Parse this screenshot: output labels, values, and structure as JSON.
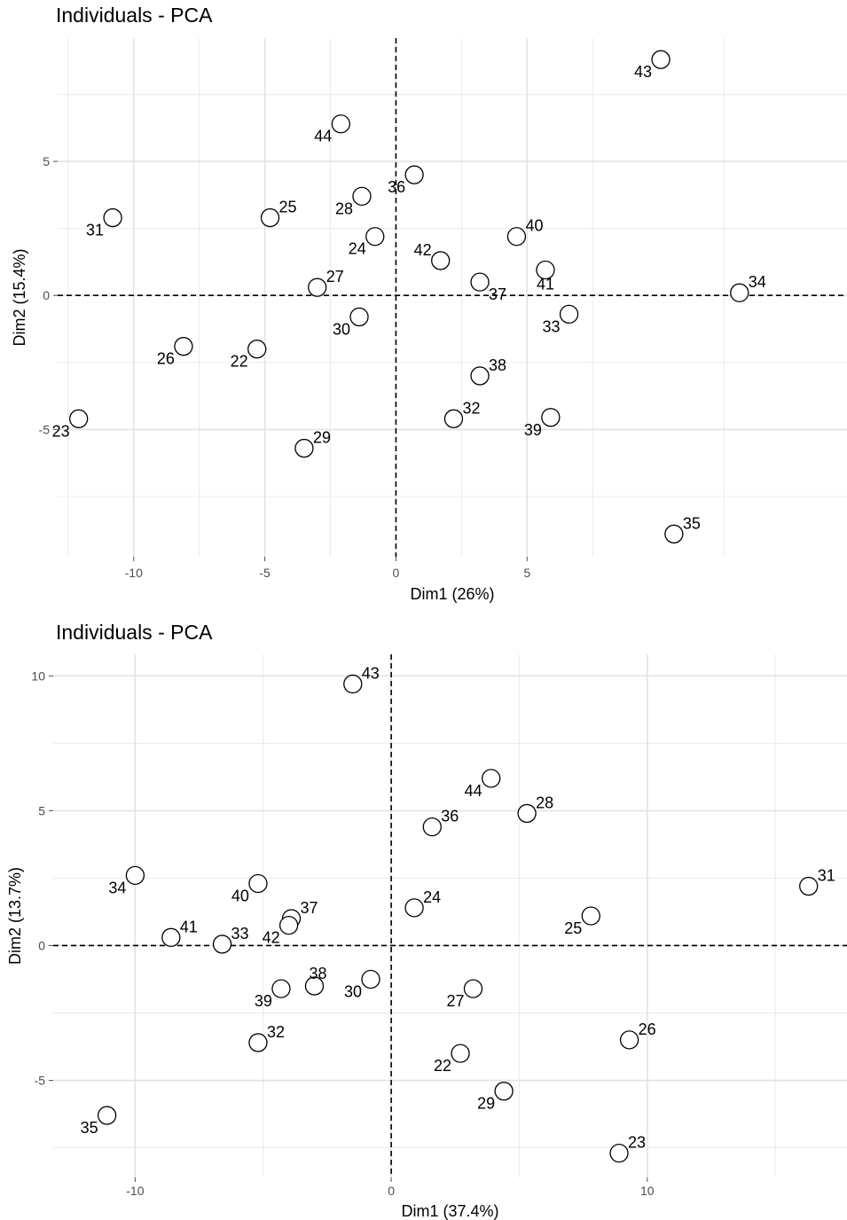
{
  "chart_data": [
    {
      "type": "scatter",
      "title": "Individuals - PCA",
      "xlabel": "Dim1 (26%)",
      "ylabel": "Dim2 (15.4%)",
      "xlim": [
        -12.9,
        17.2
      ],
      "ylim": [
        -9.75,
        9.6
      ],
      "xticks": [
        -10,
        -5,
        0,
        5
      ],
      "yticks": [
        -5,
        0,
        5
      ],
      "grid": true,
      "points": [
        {
          "label": "43",
          "x": 10.1,
          "y": 8.8,
          "pos": "bl"
        },
        {
          "label": "44",
          "x": -2.1,
          "y": 6.4,
          "pos": "bl"
        },
        {
          "label": "36",
          "x": 0.7,
          "y": 4.5,
          "pos": "bl"
        },
        {
          "label": "31",
          "x": -10.8,
          "y": 2.9,
          "pos": "bl"
        },
        {
          "label": "25",
          "x": -4.8,
          "y": 2.9,
          "pos": "tr"
        },
        {
          "label": "28",
          "x": -1.3,
          "y": 3.7,
          "pos": "bl"
        },
        {
          "label": "24",
          "x": -0.8,
          "y": 2.2,
          "pos": "bl"
        },
        {
          "label": "40",
          "x": 4.6,
          "y": 2.2,
          "pos": "tr"
        },
        {
          "label": "42",
          "x": 1.7,
          "y": 1.3,
          "pos": "tl"
        },
        {
          "label": "41",
          "x": 5.7,
          "y": 0.95,
          "pos": "b"
        },
        {
          "label": "37",
          "x": 3.2,
          "y": 0.5,
          "pos": "br"
        },
        {
          "label": "34",
          "x": 13.1,
          "y": 0.1,
          "pos": "tr"
        },
        {
          "label": "27",
          "x": -3.0,
          "y": 0.3,
          "pos": "tr"
        },
        {
          "label": "30",
          "x": -1.4,
          "y": -0.8,
          "pos": "bl"
        },
        {
          "label": "33",
          "x": 6.6,
          "y": -0.7,
          "pos": "bl"
        },
        {
          "label": "26",
          "x": -8.1,
          "y": -1.9,
          "pos": "bl"
        },
        {
          "label": "22",
          "x": -5.3,
          "y": -2.0,
          "pos": "bl"
        },
        {
          "label": "38",
          "x": 3.2,
          "y": -3.0,
          "pos": "tr"
        },
        {
          "label": "32",
          "x": 2.2,
          "y": -4.6,
          "pos": "tr"
        },
        {
          "label": "39",
          "x": 5.9,
          "y": -4.55,
          "pos": "bl"
        },
        {
          "label": "23",
          "x": -12.1,
          "y": -4.6,
          "pos": "bl"
        },
        {
          "label": "29",
          "x": -3.5,
          "y": -5.7,
          "pos": "tr"
        },
        {
          "label": "35",
          "x": 10.6,
          "y": -8.9,
          "pos": "tr"
        }
      ]
    },
    {
      "type": "scatter",
      "title": "Individuals - PCA",
      "xlabel": "Dim1 (37.4%)",
      "ylabel": "Dim2 (13.7%)",
      "xlim": [
        -13.2,
        17.8
      ],
      "ylim": [
        -8.6,
        10.8
      ],
      "xticks": [
        -10,
        0,
        10
      ],
      "yticks": [
        -5,
        0,
        5,
        10
      ],
      "grid": true,
      "points": [
        {
          "label": "43",
          "x": -1.5,
          "y": 9.7,
          "pos": "tr"
        },
        {
          "label": "44",
          "x": 3.9,
          "y": 6.2,
          "pos": "bl"
        },
        {
          "label": "28",
          "x": 5.3,
          "y": 4.9,
          "pos": "tr"
        },
        {
          "label": "36",
          "x": 1.6,
          "y": 4.4,
          "pos": "tr"
        },
        {
          "label": "31",
          "x": 16.3,
          "y": 2.2,
          "pos": "tr"
        },
        {
          "label": "34",
          "x": -10.0,
          "y": 2.6,
          "pos": "bl"
        },
        {
          "label": "40",
          "x": -5.2,
          "y": 2.3,
          "pos": "bl"
        },
        {
          "label": "24",
          "x": 0.9,
          "y": 1.4,
          "pos": "tr"
        },
        {
          "label": "25",
          "x": 7.8,
          "y": 1.1,
          "pos": "bl"
        },
        {
          "label": "37",
          "x": -3.9,
          "y": 1.0,
          "pos": "tr"
        },
        {
          "label": "42",
          "x": -4.0,
          "y": 0.75,
          "pos": "bl"
        },
        {
          "label": "41",
          "x": -8.6,
          "y": 0.3,
          "pos": "tr"
        },
        {
          "label": "33",
          "x": -6.6,
          "y": 0.05,
          "pos": "tr"
        },
        {
          "label": "38",
          "x": -3.0,
          "y": -1.5,
          "pos": "t"
        },
        {
          "label": "30",
          "x": -0.8,
          "y": -1.25,
          "pos": "bl"
        },
        {
          "label": "39",
          "x": -4.3,
          "y": -1.6,
          "pos": "bl"
        },
        {
          "label": "27",
          "x": 3.2,
          "y": -1.6,
          "pos": "bl"
        },
        {
          "label": "32",
          "x": -5.2,
          "y": -3.6,
          "pos": "tr"
        },
        {
          "label": "26",
          "x": 9.3,
          "y": -3.5,
          "pos": "tr"
        },
        {
          "label": "22",
          "x": 2.7,
          "y": -4.0,
          "pos": "bl"
        },
        {
          "label": "29",
          "x": 4.4,
          "y": -5.4,
          "pos": "bl"
        },
        {
          "label": "35",
          "x": -11.1,
          "y": -6.3,
          "pos": "bl"
        },
        {
          "label": "23",
          "x": 8.9,
          "y": -7.7,
          "pos": "tr"
        }
      ]
    }
  ]
}
